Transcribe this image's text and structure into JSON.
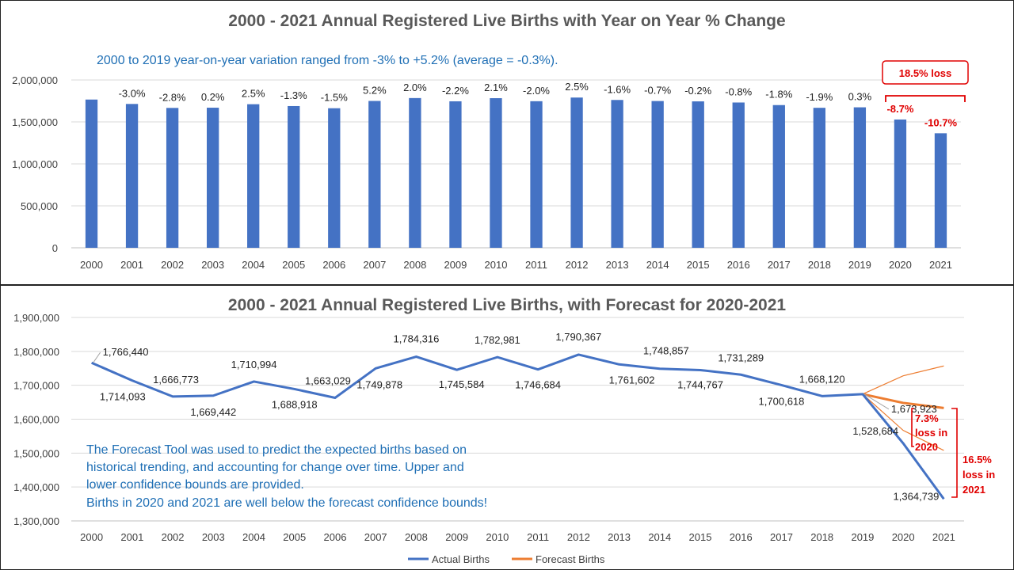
{
  "chart_data": [
    {
      "type": "bar",
      "title": "2000 - 2021 Annual Registered Live Births with Year on Year % Change",
      "categories": [
        "2000",
        "2001",
        "2002",
        "2003",
        "2004",
        "2005",
        "2006",
        "2007",
        "2008",
        "2009",
        "2010",
        "2011",
        "2012",
        "2013",
        "2014",
        "2015",
        "2016",
        "2017",
        "2018",
        "2019",
        "2020",
        "2021"
      ],
      "values": [
        1766440,
        1714093,
        1666773,
        1669442,
        1710994,
        1688918,
        1663029,
        1749878,
        1784316,
        1745584,
        1782981,
        1746684,
        1790367,
        1761602,
        1748857,
        1744767,
        1731289,
        1700618,
        1668120,
        1673923,
        1528684,
        1364739
      ],
      "yoy_labels": [
        "",
        "-3.0%",
        "-2.8%",
        "0.2%",
        "2.5%",
        "-1.3%",
        "-1.5%",
        "5.2%",
        "2.0%",
        "-2.2%",
        "2.1%",
        "-2.0%",
        "2.5%",
        "-1.6%",
        "-0.7%",
        "-0.2%",
        "-0.8%",
        "-1.8%",
        "-1.9%",
        "0.3%",
        "-8.7%",
        "-10.7%"
      ],
      "highlight_years": [
        "2020",
        "2021"
      ],
      "yticks": [
        "0",
        "500,000",
        "1,000,000",
        "1,500,000",
        "2,000,000"
      ],
      "ylim": [
        0,
        2000000
      ],
      "annotation": "2000 to 2019 year-on-year variation ranged from -3% to +5.2% (average = -0.3%).",
      "callout": "18.5% loss",
      "grid": true,
      "bar_color": "#4472c4"
    },
    {
      "type": "line",
      "title": "2000 - 2021 Annual Registered Live Births, with Forecast for 2020-2021",
      "x": [
        "2000",
        "2001",
        "2002",
        "2003",
        "2004",
        "2005",
        "2006",
        "2007",
        "2008",
        "2009",
        "2010",
        "2011",
        "2012",
        "2013",
        "2014",
        "2015",
        "2016",
        "2017",
        "2018",
        "2019",
        "2020",
        "2021"
      ],
      "series": [
        {
          "name": "Actual Births",
          "color": "#4472c4",
          "values": [
            1766440,
            1714093,
            1666773,
            1669442,
            1710994,
            1688918,
            1663029,
            1749878,
            1784316,
            1745584,
            1782981,
            1746684,
            1790367,
            1761602,
            1748857,
            1744767,
            1731289,
            1700618,
            1668120,
            1673923,
            1528684,
            1364739
          ],
          "labels": [
            "1,766,440",
            "1,714,093",
            "1,666,773",
            "1,669,442",
            "1,710,994",
            "1,688,918",
            "1,663,029",
            "1,749,878",
            "1,784,316",
            "1,745,584",
            "1,782,981",
            "1,746,684",
            "1,790,367",
            "1,761,602",
            "1,748,857",
            "1,744,767",
            "1,731,289",
            "1,700,618",
            "1,668,120",
            "1,673,923",
            "1,528,684",
            "1,364,739"
          ]
        },
        {
          "name": "Forecast Births",
          "color": "#ed7d31",
          "x": [
            "2019",
            "2020",
            "2021"
          ],
          "values": [
            1673923,
            1648000,
            1633000
          ],
          "upper": [
            1673923,
            1728000,
            1757000
          ],
          "lower": [
            1673923,
            1567000,
            1508000
          ]
        }
      ],
      "yticks": [
        "1,300,000",
        "1,400,000",
        "1,500,000",
        "1,600,000",
        "1,700,000",
        "1,800,000",
        "1,900,000"
      ],
      "ylim": [
        1300000,
        1900000
      ],
      "annotation_lines": [
        "The Forecast Tool was used to predict the expected births based on",
        "historical trending, and accounting for change over time.  Upper and",
        "lower confidence bounds are provided.",
        "Births in 2020 and 2021 are well below the forecast confidence bounds!"
      ],
      "loss_2020": [
        "7.3%",
        "loss in",
        "2020"
      ],
      "loss_2021": [
        "16.5%",
        "loss in",
        "2021"
      ],
      "legend_placement": "bottom",
      "grid": true
    }
  ]
}
